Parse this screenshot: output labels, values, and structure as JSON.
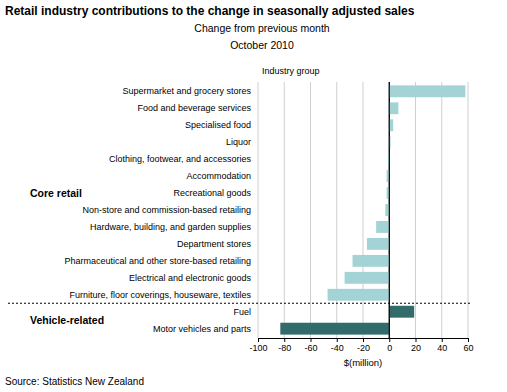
{
  "chart_data": {
    "type": "bar",
    "orientation": "horizontal",
    "title": "Retail industry contributions to the change in seasonally adjusted sales",
    "subtitle": [
      "Change from previous month",
      "October 2010"
    ],
    "y_label": "Industry group",
    "x_label": "$(million)",
    "source": "Source: Statistics New Zealand",
    "categories": [
      "Supermarket and grocery stores",
      "Food and beverage services",
      "Specialised food",
      "Liquor",
      "Clothing, footwear, and accessories",
      "Accommodation",
      "Recreational goods",
      "Non-store and commission-based retailing",
      "Hardware, building, and garden supplies",
      "Department stores",
      "Pharmaceutical and other store-based retailing",
      "Electrical and electronic goods",
      "Furniture, floor coverings, houseware, textiles",
      "Fuel",
      "Motor vehicles and parts"
    ],
    "values": [
      58,
      7,
      3,
      1,
      -1,
      -2,
      -2,
      -3,
      -10,
      -17,
      -28,
      -34,
      -47,
      19,
      -83
    ],
    "colors": [
      "#a3d3d5",
      "#a3d3d5",
      "#a3d3d5",
      "#a3d3d5",
      "#a3d3d5",
      "#a3d3d5",
      "#a3d3d5",
      "#a3d3d5",
      "#a3d3d5",
      "#a3d3d5",
      "#a3d3d5",
      "#a3d3d5",
      "#a3d3d5",
      "#336b6a",
      "#336b6a"
    ],
    "groups": [
      {
        "name": "Core retail",
        "count": 13
      },
      {
        "name": "Vehicle-related",
        "count": 2
      }
    ],
    "xlim": [
      -100,
      60
    ],
    "xticks": [
      -100,
      -80,
      -60,
      -40,
      -20,
      0,
      20,
      40,
      60
    ],
    "grid": true
  }
}
